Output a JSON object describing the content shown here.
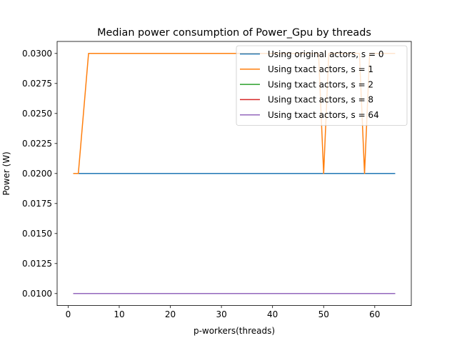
{
  "chart_data": {
    "type": "line",
    "title": "Median power consumption of Power_Gpu by threads",
    "xlabel": "p-workers(threads)",
    "ylabel": "Power (W)",
    "xlim": [
      -2.15,
      67.15
    ],
    "ylim": [
      0.009,
      0.031
    ],
    "x_ticks": [
      {
        "value": 0,
        "label": "0"
      },
      {
        "value": 10,
        "label": "10"
      },
      {
        "value": 20,
        "label": "20"
      },
      {
        "value": 30,
        "label": "30"
      },
      {
        "value": 40,
        "label": "40"
      },
      {
        "value": 50,
        "label": "50"
      },
      {
        "value": 60,
        "label": "60"
      }
    ],
    "y_ticks": [
      {
        "value": 0.01,
        "label": "0.0100"
      },
      {
        "value": 0.0125,
        "label": "0.0125"
      },
      {
        "value": 0.015,
        "label": "0.0150"
      },
      {
        "value": 0.0175,
        "label": "0.0175"
      },
      {
        "value": 0.02,
        "label": "0.0200"
      },
      {
        "value": 0.0225,
        "label": "0.0225"
      },
      {
        "value": 0.025,
        "label": "0.0250"
      },
      {
        "value": 0.0275,
        "label": "0.0275"
      },
      {
        "value": 0.03,
        "label": "0.0300"
      }
    ],
    "grid": false,
    "legend_position": "top-right",
    "series": [
      {
        "name": "Using original actors, s = 0",
        "color": "#1f77b4",
        "x": [
          1,
          64
        ],
        "y": [
          0.02,
          0.02
        ]
      },
      {
        "name": "Using txact actors, s = 1",
        "color": "#ff7f0e",
        "x": [
          1,
          2,
          4,
          49,
          50,
          51,
          57,
          58,
          59,
          64
        ],
        "y": [
          0.02,
          0.02,
          0.03,
          0.03,
          0.02,
          0.03,
          0.03,
          0.02,
          0.03,
          0.03
        ]
      },
      {
        "name": "Using txact actors, s = 2",
        "color": "#2ca02c",
        "x": [
          1,
          64
        ],
        "y": [
          0.01,
          0.01
        ]
      },
      {
        "name": "Using txact actors, s = 8",
        "color": "#d62728",
        "x": [
          1,
          64
        ],
        "y": [
          0.01,
          0.01
        ]
      },
      {
        "name": "Using txact actors, s = 64",
        "color": "#9467bd",
        "x": [
          1,
          64
        ],
        "y": [
          0.01,
          0.01
        ]
      }
    ]
  }
}
